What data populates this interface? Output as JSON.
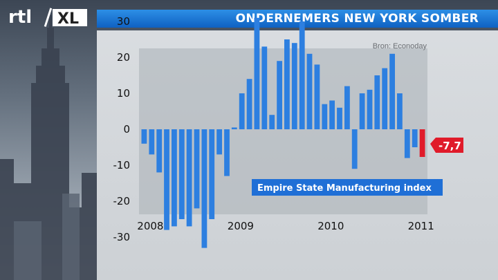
{
  "header": {
    "title": "ONDERNEMERS NEW YORK SOMBER",
    "logo_text_left": "rtl",
    "logo_text_right": "XL"
  },
  "colors": {
    "bar_blue": "#2d7fe0",
    "bar_red": "#e01b2a",
    "title_blue": "#1470d4"
  },
  "chart_data": {
    "type": "bar",
    "title": "Empire State Manufacturing index",
    "source": "Bron: Econoday",
    "xlabel": "",
    "ylabel": "",
    "ylim": [
      -35,
      35
    ],
    "yticks": [
      30,
      20,
      10,
      0,
      -10,
      -20,
      -30
    ],
    "ytick_labels": [
      "30",
      "20",
      "10",
      "0",
      "-10",
      "-20",
      "-30"
    ],
    "xtick_labels": [
      "2008",
      "2009",
      "2010",
      "2011"
    ],
    "callout": {
      "label": "-7,7",
      "value": -7.7
    },
    "series": [
      {
        "values": [
          -4,
          -7,
          -12,
          -28,
          -27,
          -25,
          -27,
          -22,
          -33,
          -25,
          -7,
          -13,
          0.5,
          10,
          14,
          31,
          23,
          4,
          19,
          25,
          24,
          30,
          21,
          18,
          7,
          8,
          6,
          12,
          -11,
          10,
          11,
          15,
          17,
          21,
          10,
          -8,
          -5,
          -7.7
        ]
      }
    ]
  }
}
